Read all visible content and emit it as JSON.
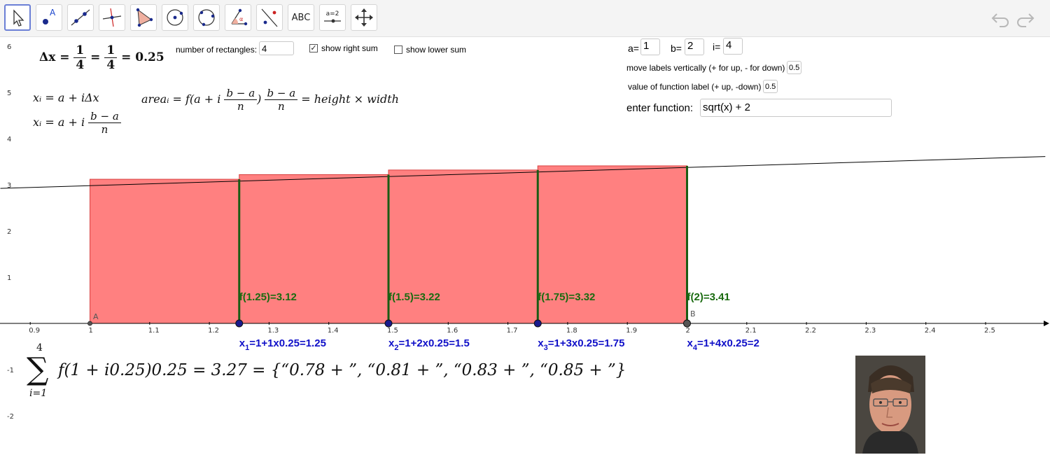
{
  "toolbar": {
    "tools": [
      "move-tool",
      "point-tool",
      "line-tool",
      "perpendicular-line-tool",
      "polygon-tool",
      "circle-center-tool",
      "circle-three-points-tool",
      "angle-tool",
      "reflect-tool",
      "text-tool",
      "slider-tool",
      "move-graphics-view-tool"
    ],
    "text_tool_label": "ABC",
    "slider_tool_label": "a=2"
  },
  "controls": {
    "num_rect_label": "number of rectangles:",
    "num_rect_value": "4",
    "show_right_sum_label": "show right sum",
    "show_right_sum_checked": true,
    "show_lower_sum_label": "show lower sum",
    "show_lower_sum_checked": false,
    "a_label": "a=",
    "a_value": "1",
    "b_label": "b=",
    "b_value": "2",
    "i_label": "i=",
    "i_value": "4",
    "move_labels_label": "move labels vertically (+ for up, - for down)",
    "move_labels_value": "0.5",
    "value_label_label": "value of function label (+ up, -down)",
    "value_label_value": "0.5",
    "enter_function_label": "enter function:",
    "function_value": "sqrt(x) + 2"
  },
  "formulas": {
    "delta_x_lhs": "Δx",
    "delta_x_frac1_num": "1",
    "delta_x_frac1_den": "4",
    "delta_x_frac2_num": "1",
    "delta_x_frac2_den": "4",
    "delta_x_value": "0.25",
    "xi_line1": "xᵢ = a + iΔx",
    "xi_line2_prefix": "xᵢ = a + i",
    "frac_num": "b − a",
    "frac_den": "n",
    "area_prefix": "areaᵢ = f(a + i",
    "area_mid": ")",
    "area_suffix": "= height × width",
    "sum_upper": "4",
    "sum_lower": "i=1",
    "sum_body": "f(1 + i0.25)0.25 = 3.27 = {“0.78 + ”, “0.81 + ”, “0.83 + ”, “0.85 + ”}"
  },
  "chart_data": {
    "type": "area",
    "function": "sqrt(x) + 2",
    "x_ticks": [
      "0.9",
      "1",
      "1.1",
      "1.2",
      "1.3",
      "1.4",
      "1.5",
      "1.6",
      "1.7",
      "1.8",
      "1.9",
      "2",
      "2.1",
      "2.2",
      "2.3",
      "2.4",
      "2.5"
    ],
    "y_ticks": [
      "6",
      "5",
      "4",
      "3",
      "2",
      "1",
      "-1",
      "-2"
    ],
    "rectangles": [
      {
        "x_left": 1.0,
        "x_right": 1.25,
        "height": 3.12
      },
      {
        "x_left": 1.25,
        "x_right": 1.5,
        "height": 3.22
      },
      {
        "x_left": 1.5,
        "x_right": 1.75,
        "height": 3.32
      },
      {
        "x_left": 1.75,
        "x_right": 2.0,
        "height": 3.41
      }
    ],
    "function_labels": [
      "f(1.25)=3.12",
      "f(1.5)=3.22",
      "f(1.75)=3.32",
      "f(2)=3.41"
    ],
    "x_labels": [
      {
        "sub": "1",
        "rest": "=1+1x0.25=1.25"
      },
      {
        "sub": "2",
        "rest": "=1+2x0.25=1.5"
      },
      {
        "sub": "3",
        "rest": "=1+3x0.25=1.75"
      },
      {
        "sub": "4",
        "rest": "=1+4x0.25=2"
      }
    ],
    "x_label_prefix": "x",
    "point_a_label": "A",
    "point_b_label": "B",
    "colors": {
      "rect_fill": "#ff8080",
      "rect_stroke": "#d84040",
      "riser": "#1a5c14",
      "label_green": "#1a6b10",
      "label_blue": "#1010c8",
      "point_blue": "#1a1a8c"
    }
  }
}
